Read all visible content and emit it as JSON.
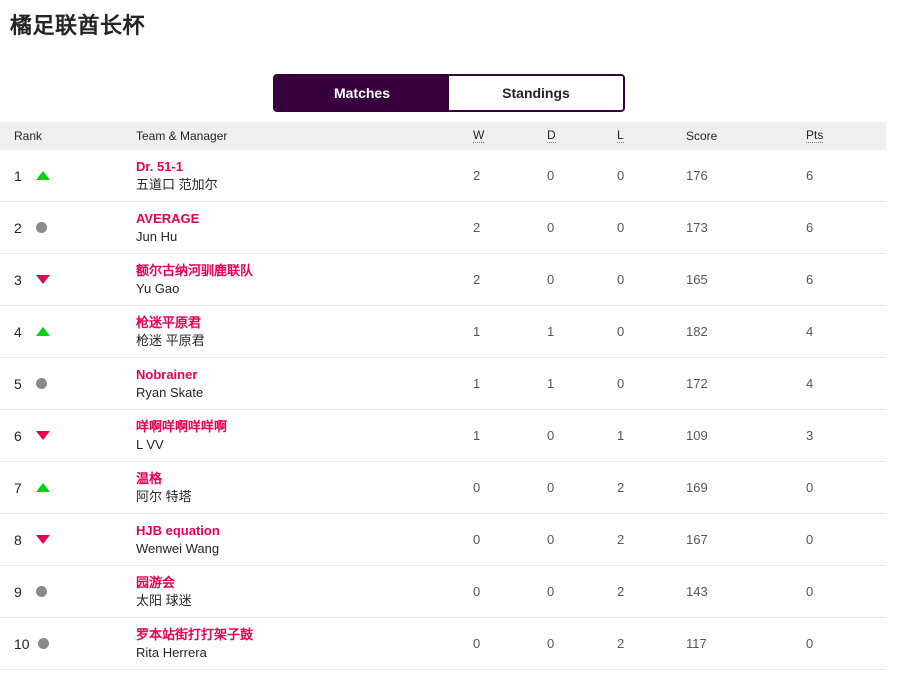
{
  "page_title": "橘足联酋长杯",
  "tabs": {
    "matches": {
      "label": "Matches",
      "active": true
    },
    "standings": {
      "label": "Standings",
      "active": false
    }
  },
  "table": {
    "headers": {
      "rank": "Rank",
      "team": "Team & Manager",
      "w": "W",
      "d": "D",
      "l": "L",
      "score": "Score",
      "pts": "Pts"
    },
    "rows": [
      {
        "rank": "1",
        "movement": "up",
        "team": "Dr. 51-1",
        "manager": "五道口 范加尔",
        "w": "2",
        "d": "0",
        "l": "0",
        "score": "176",
        "pts": "6"
      },
      {
        "rank": "2",
        "movement": "same",
        "team": "AVERAGE",
        "manager": "Jun Hu",
        "w": "2",
        "d": "0",
        "l": "0",
        "score": "173",
        "pts": "6"
      },
      {
        "rank": "3",
        "movement": "down",
        "team": "额尔古纳河驯鹿联队",
        "manager": "Yu Gao",
        "w": "2",
        "d": "0",
        "l": "0",
        "score": "165",
        "pts": "6"
      },
      {
        "rank": "4",
        "movement": "up",
        "team": "枪迷平原君",
        "manager": "枪迷 平原君",
        "w": "1",
        "d": "1",
        "l": "0",
        "score": "182",
        "pts": "4"
      },
      {
        "rank": "5",
        "movement": "same",
        "team": "Nobrainer",
        "manager": "Ryan Skate",
        "w": "1",
        "d": "1",
        "l": "0",
        "score": "172",
        "pts": "4"
      },
      {
        "rank": "6",
        "movement": "down",
        "team": "咩啊咩啊咩咩啊",
        "manager": "L VV",
        "w": "1",
        "d": "0",
        "l": "1",
        "score": "109",
        "pts": "3"
      },
      {
        "rank": "7",
        "movement": "up",
        "team": "温格",
        "manager": "阿尔 特塔",
        "w": "0",
        "d": "0",
        "l": "2",
        "score": "169",
        "pts": "0"
      },
      {
        "rank": "8",
        "movement": "down",
        "team": "HJB equation",
        "manager": "Wenwei Wang",
        "w": "0",
        "d": "0",
        "l": "2",
        "score": "167",
        "pts": "0"
      },
      {
        "rank": "9",
        "movement": "same",
        "team": "园游会",
        "manager": "太阳 球迷",
        "w": "0",
        "d": "0",
        "l": "2",
        "score": "143",
        "pts": "0"
      },
      {
        "rank": "10",
        "movement": "same",
        "team": "罗本站街打打架子鼓",
        "manager": "Rita Herrera",
        "w": "0",
        "d": "0",
        "l": "2",
        "score": "117",
        "pts": "0"
      }
    ]
  },
  "colors": {
    "brand_purple": "#38003c",
    "team_link_pink": "#e90052",
    "movement_up_green": "#00d415",
    "movement_down_pink": "#e90052",
    "movement_same_gray": "#8a8a8a",
    "header_bg_gray": "#efefef",
    "row_border_gray": "#e8e8e8"
  }
}
